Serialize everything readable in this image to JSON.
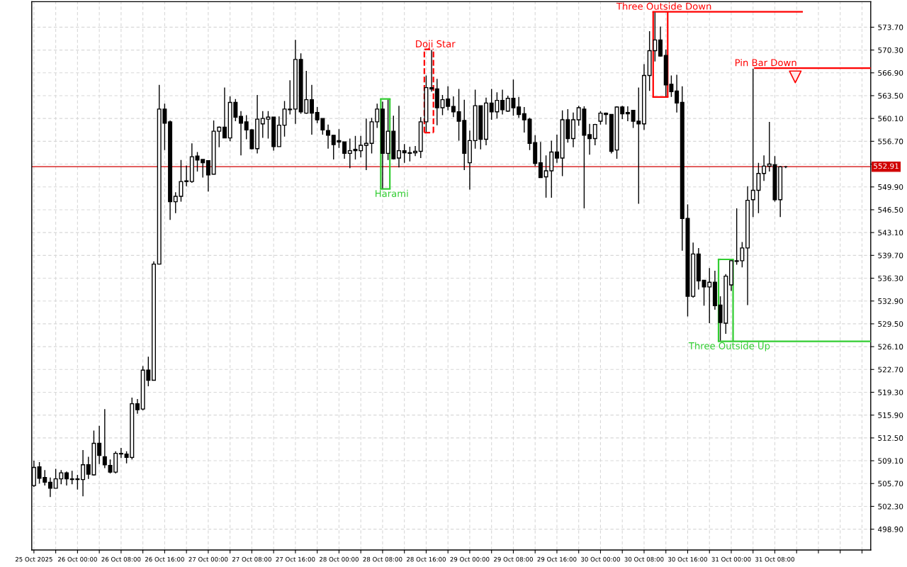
{
  "chart_data": {
    "type": "candlestick",
    "x": [
      "2025-10-25T16:00",
      "2025-10-25T17:00",
      "2025-10-25T18:00",
      "2025-10-25T19:00",
      "2025-10-25T20:00",
      "2025-10-25T21:00",
      "2025-10-25T22:00",
      "2025-10-25T23:00",
      "2025-10-26T00:00",
      "2025-10-26T01:00",
      "2025-10-26T02:00",
      "2025-10-26T03:00",
      "2025-10-26T04:00",
      "2025-10-26T05:00",
      "2025-10-26T06:00",
      "2025-10-26T07:00",
      "2025-10-26T08:00",
      "2025-10-26T09:00",
      "2025-10-26T10:00",
      "2025-10-26T11:00",
      "2025-10-26T12:00",
      "2025-10-26T13:00",
      "2025-10-26T14:00",
      "2025-10-26T15:00",
      "2025-10-26T16:00",
      "2025-10-26T17:00",
      "2025-10-26T18:00",
      "2025-10-26T19:00",
      "2025-10-26T20:00",
      "2025-10-26T21:00",
      "2025-10-26T22:00",
      "2025-10-26T23:00",
      "2025-10-27T00:00",
      "2025-10-27T01:00",
      "2025-10-27T02:00",
      "2025-10-27T03:00",
      "2025-10-27T04:00",
      "2025-10-27T05:00",
      "2025-10-27T06:00",
      "2025-10-27T07:00",
      "2025-10-27T08:00",
      "2025-10-27T09:00",
      "2025-10-27T10:00",
      "2025-10-27T11:00",
      "2025-10-27T12:00",
      "2025-10-27T13:00",
      "2025-10-27T14:00",
      "2025-10-27T15:00",
      "2025-10-27T16:00",
      "2025-10-27T17:00",
      "2025-10-27T18:00",
      "2025-10-27T19:00",
      "2025-10-27T20:00",
      "2025-10-27T21:00",
      "2025-10-27T22:00",
      "2025-10-27T23:00",
      "2025-10-28T00:00",
      "2025-10-28T01:00",
      "2025-10-28T02:00",
      "2025-10-28T03:00",
      "2025-10-28T04:00",
      "2025-10-28T05:00",
      "2025-10-28T06:00",
      "2025-10-28T07:00",
      "2025-10-28T08:00",
      "2025-10-28T09:00",
      "2025-10-28T10:00",
      "2025-10-28T11:00",
      "2025-10-28T12:00",
      "2025-10-28T13:00",
      "2025-10-28T14:00",
      "2025-10-28T15:00",
      "2025-10-28T16:00",
      "2025-10-28T17:00",
      "2025-10-28T18:00",
      "2025-10-28T19:00",
      "2025-10-28T20:00",
      "2025-10-28T21:00",
      "2025-10-28T22:00",
      "2025-10-28T23:00",
      "2025-10-29T00:00",
      "2025-10-29T01:00",
      "2025-10-29T02:00",
      "2025-10-29T03:00",
      "2025-10-29T04:00",
      "2025-10-29T05:00",
      "2025-10-29T06:00",
      "2025-10-29T07:00",
      "2025-10-29T08:00",
      "2025-10-29T09:00",
      "2025-10-29T10:00",
      "2025-10-29T11:00",
      "2025-10-29T12:00",
      "2025-10-29T13:00",
      "2025-10-29T14:00",
      "2025-10-29T15:00",
      "2025-10-29T16:00",
      "2025-10-29T17:00",
      "2025-10-29T18:00",
      "2025-10-29T19:00",
      "2025-10-29T20:00",
      "2025-10-29T21:00",
      "2025-10-29T22:00",
      "2025-10-29T23:00",
      "2025-10-30T00:00",
      "2025-10-30T01:00",
      "2025-10-30T02:00",
      "2025-10-30T03:00",
      "2025-10-30T04:00",
      "2025-10-30T05:00",
      "2025-10-30T06:00",
      "2025-10-30T07:00",
      "2025-10-30T08:00",
      "2025-10-30T09:00",
      "2025-10-30T10:00",
      "2025-10-30T11:00",
      "2025-10-30T12:00",
      "2025-10-30T13:00",
      "2025-10-30T14:00",
      "2025-10-30T15:00",
      "2025-10-30T16:00",
      "2025-10-30T17:00",
      "2025-10-30T18:00",
      "2025-10-30T19:00",
      "2025-10-30T20:00",
      "2025-10-30T21:00",
      "2025-10-30T22:00",
      "2025-10-30T23:00",
      "2025-10-31T00:00",
      "2025-10-31T01:00",
      "2025-10-31T02:00",
      "2025-10-31T03:00",
      "2025-10-31T04:00",
      "2025-10-31T05:00",
      "2025-10-31T06:00",
      "2025-10-31T07:00",
      "2025-10-31T08:00",
      "2025-10-31T09:00",
      "2025-10-31T10:00"
    ],
    "series": [
      {
        "color": "#000000",
        "ohlc": [
          [
            505.4,
            509.1,
            505.2,
            508.1
          ],
          [
            508.2,
            508.9,
            505.7,
            506.5
          ],
          [
            506.6,
            507.7,
            505.4,
            505.9
          ],
          [
            505.9,
            506.6,
            503.7,
            505.0
          ],
          [
            505.0,
            507.9,
            505.0,
            506.4
          ],
          [
            506.4,
            507.7,
            505.6,
            507.3
          ],
          [
            507.3,
            507.5,
            505.4,
            506.4
          ],
          [
            506.4,
            507.6,
            505.6,
            506.3
          ],
          [
            506.4,
            507.0,
            504.8,
            506.3
          ],
          [
            506.3,
            510.7,
            503.8,
            508.5
          ],
          [
            508.5,
            509.7,
            506.4,
            507.1
          ],
          [
            507.0,
            513.6,
            506.9,
            511.7
          ],
          [
            511.7,
            514.3,
            508.6,
            509.9
          ],
          [
            509.7,
            516.8,
            508.0,
            508.5
          ],
          [
            508.4,
            509.3,
            507.2,
            507.4
          ],
          [
            507.4,
            510.5,
            507.2,
            510.2
          ],
          [
            510.1,
            511.0,
            509.5,
            510.2
          ],
          [
            510.1,
            510.5,
            508.7,
            509.6
          ],
          [
            509.6,
            518.5,
            509.3,
            517.6
          ],
          [
            517.6,
            518.3,
            516.1,
            516.7
          ],
          [
            516.8,
            523.2,
            516.6,
            522.6
          ],
          [
            522.6,
            524.6,
            520.2,
            521.1
          ],
          [
            521.1,
            538.8,
            521.1,
            538.4
          ],
          [
            538.4,
            565.1,
            538.4,
            561.5
          ],
          [
            561.5,
            562.3,
            555.4,
            559.4
          ],
          [
            559.6,
            559.8,
            545.0,
            547.7
          ],
          [
            547.7,
            549.1,
            546.0,
            548.5
          ],
          [
            548.5,
            553.9,
            547.7,
            550.7
          ],
          [
            550.7,
            553.1,
            550.0,
            550.8
          ],
          [
            550.7,
            556.4,
            550.5,
            554.4
          ],
          [
            554.5,
            555.1,
            552.2,
            553.9
          ],
          [
            554.0,
            554.0,
            551.3,
            553.5
          ],
          [
            553.8,
            553.8,
            549.2,
            551.7
          ],
          [
            551.8,
            559.8,
            551.8,
            558.2
          ],
          [
            558.2,
            558.9,
            555.8,
            558.8
          ],
          [
            558.8,
            564.7,
            557.2,
            557.2
          ],
          [
            557.2,
            563.4,
            556.7,
            562.5
          ],
          [
            562.5,
            563.0,
            559.7,
            560.3
          ],
          [
            560.4,
            561.2,
            554.6,
            559.4
          ],
          [
            559.6,
            560.6,
            557.0,
            558.4
          ],
          [
            558.4,
            558.5,
            555.5,
            555.6
          ],
          [
            555.6,
            563.6,
            554.9,
            560.0
          ],
          [
            559.3,
            561.2,
            557.2,
            560.1
          ],
          [
            560.0,
            561.2,
            557.1,
            560.3
          ],
          [
            560.3,
            560.3,
            555.3,
            555.9
          ],
          [
            555.9,
            560.4,
            555.9,
            559.1
          ],
          [
            559.1,
            562.7,
            557.4,
            561.5
          ],
          [
            561.5,
            565.8,
            560.7,
            561.4
          ],
          [
            561.5,
            571.8,
            559.3,
            568.9
          ],
          [
            568.9,
            569.8,
            560.8,
            561.1
          ],
          [
            560.9,
            567.2,
            560.8,
            562.9
          ],
          [
            562.9,
            565.1,
            557.7,
            560.9
          ],
          [
            561.0,
            561.8,
            559.4,
            559.9
          ],
          [
            560.1,
            560.1,
            557.7,
            558.4
          ],
          [
            558.3,
            559.2,
            555.6,
            557.6
          ],
          [
            557.6,
            557.6,
            554.0,
            556.2
          ],
          [
            556.8,
            558.5,
            555.7,
            556.6
          ],
          [
            556.6,
            556.6,
            554.1,
            554.9
          ],
          [
            554.9,
            557.1,
            552.7,
            555.3
          ],
          [
            555.5,
            557.5,
            554.0,
            555.3
          ],
          [
            555.3,
            557.5,
            554.3,
            556.1
          ],
          [
            556.1,
            560.1,
            552.4,
            556.4
          ],
          [
            556.4,
            560.2,
            554.9,
            559.6
          ],
          [
            559.6,
            562.3,
            558.7,
            561.5
          ],
          [
            561.5,
            562.6,
            549.7,
            554.9
          ],
          [
            554.9,
            562.9,
            553.9,
            558.2
          ],
          [
            558.2,
            560.5,
            554.0,
            554.1
          ],
          [
            554.2,
            562.0,
            552.8,
            555.3
          ],
          [
            555.3,
            556.3,
            553.5,
            555.0
          ],
          [
            555.0,
            555.9,
            553.7,
            554.9
          ],
          [
            555.0,
            556.0,
            554.5,
            555.2
          ],
          [
            555.2,
            560.3,
            554.2,
            559.6
          ],
          [
            559.6,
            566.5,
            558.1,
            564.7
          ],
          [
            564.7,
            570.3,
            564.1,
            564.5
          ],
          [
            564.5,
            566.0,
            559.1,
            561.7
          ],
          [
            561.7,
            563.6,
            560.6,
            562.9
          ],
          [
            563.0,
            564.9,
            561.3,
            561.9
          ],
          [
            561.9,
            563.4,
            560.3,
            561.1
          ],
          [
            561.1,
            564.5,
            556.8,
            559.7
          ],
          [
            559.8,
            562.9,
            552.4,
            554.9
          ],
          [
            553.5,
            558.3,
            549.5,
            556.8
          ],
          [
            556.8,
            564.4,
            555.6,
            562.0
          ],
          [
            562.0,
            562.0,
            555.5,
            557.0
          ],
          [
            557.0,
            563.2,
            556.1,
            562.4
          ],
          [
            562.4,
            564.5,
            559.9,
            561.1
          ],
          [
            561.1,
            564.0,
            560.1,
            562.8
          ],
          [
            562.8,
            564.4,
            560.7,
            561.4
          ],
          [
            561.2,
            563.5,
            561.1,
            563.1
          ],
          [
            563.1,
            565.9,
            560.5,
            561.7
          ],
          [
            561.8,
            563.3,
            560.2,
            560.7
          ],
          [
            560.8,
            561.8,
            558.0,
            559.9
          ],
          [
            560.0,
            560.2,
            555.4,
            556.4
          ],
          [
            556.5,
            557.6,
            553.0,
            553.4
          ],
          [
            553.5,
            556.6,
            551.3,
            551.3
          ],
          [
            551.4,
            554.6,
            548.3,
            552.3
          ],
          [
            552.3,
            556.8,
            548.3,
            555.1
          ],
          [
            555.1,
            557.7,
            553.5,
            554.2
          ],
          [
            554.2,
            561.3,
            551.5,
            559.9
          ],
          [
            559.9,
            561.5,
            556.5,
            557.1
          ],
          [
            557.1,
            561.0,
            555.8,
            559.9
          ],
          [
            559.9,
            562.0,
            559.0,
            561.7
          ],
          [
            561.5,
            561.9,
            546.7,
            557.6
          ],
          [
            557.7,
            559.3,
            554.7,
            557.1
          ],
          [
            557.1,
            559.3,
            556.1,
            559.2
          ],
          [
            559.7,
            561.2,
            559.2,
            560.9
          ],
          [
            560.9,
            561.0,
            559.2,
            560.7
          ],
          [
            560.7,
            560.7,
            554.9,
            555.2
          ],
          [
            555.4,
            561.9,
            554.1,
            561.8
          ],
          [
            561.8,
            562.0,
            560.0,
            560.8
          ],
          [
            561.0,
            561.9,
            559.7,
            560.8
          ],
          [
            561.3,
            561.3,
            558.7,
            559.7
          ],
          [
            559.7,
            564.7,
            547.4,
            559.3
          ],
          [
            559.3,
            568.2,
            558.4,
            566.5
          ],
          [
            566.5,
            573.1,
            564.2,
            570.2
          ],
          [
            570.2,
            575.9,
            568.6,
            571.8
          ],
          [
            571.8,
            573.8,
            569.3,
            569.4
          ],
          [
            569.5,
            570.4,
            563.4,
            565.1
          ],
          [
            565.2,
            566.5,
            563.3,
            564.1
          ],
          [
            564.2,
            566.6,
            561.0,
            562.4
          ],
          [
            562.5,
            564.9,
            540.4,
            545.2
          ],
          [
            545.2,
            547.3,
            530.6,
            533.6
          ],
          [
            533.6,
            541.6,
            533.4,
            539.9
          ],
          [
            539.9,
            540.8,
            534.6,
            535.9
          ],
          [
            536.0,
            536.0,
            532.2,
            535.0
          ],
          [
            535.0,
            537.8,
            529.6,
            535.7
          ],
          [
            535.7,
            537.4,
            531.6,
            532.2
          ],
          [
            532.3,
            533.6,
            527.0,
            529.7
          ],
          [
            529.6,
            536.9,
            528.0,
            536.6
          ],
          [
            535.3,
            539.0,
            534.4,
            538.9
          ],
          [
            538.9,
            546.7,
            538.3,
            538.8
          ],
          [
            538.9,
            541.7,
            537.9,
            540.8
          ],
          [
            540.8,
            550.0,
            532.3,
            547.9
          ],
          [
            548.0,
            567.5,
            545.4,
            549.4
          ],
          [
            549.4,
            553.5,
            546.0,
            551.9
          ],
          [
            551.9,
            554.6,
            550.8,
            553.0
          ],
          [
            553.0,
            559.6,
            552.2,
            553.3
          ],
          [
            553.2,
            554.5,
            547.7,
            548.0
          ],
          [
            548.0,
            553.0,
            545.4,
            552.9
          ],
          [
            552.9,
            553.0,
            552.7,
            552.9
          ]
        ]
      },
      {
        "type": "line",
        "color": "#32cd32",
        "line_style": "solid",
        "x": [
          "2025-10-28T07:40",
          "2025-10-28T09:20"
        ],
        "values": [
          563.0,
          563.0
        ]
      },
      {
        "type": "line",
        "name": "Harami",
        "color": "#32cd32",
        "line_style": "solid",
        "x": [
          "2025-10-28T07:40",
          "2025-10-28T09:20"
        ],
        "values": [
          549.6,
          549.6
        ]
      },
      {
        "type": "line",
        "name": "Doji Star",
        "color": "#ff0000",
        "line_style": "dashed",
        "x": [
          "2025-10-28T15:40",
          "2025-10-28T17:20"
        ],
        "values": [
          570.4,
          570.4
        ]
      },
      {
        "type": "line",
        "color": "#ff0000",
        "line_style": "dashed",
        "x": [
          "2025-10-28T15:40",
          "2025-10-28T17:20"
        ],
        "values": [
          558.0,
          558.0
        ]
      },
      {
        "type": "line",
        "name": "Three Outside Down",
        "color": "#ff0000",
        "line_style": "solid",
        "x": [
          "2025-10-30T09:40",
          "2025-10-30T12:20",
          "2025-10-31T13:00"
        ],
        "values": [
          576.0,
          576.0,
          576.0
        ]
      },
      {
        "type": "line",
        "color": "#ff0000",
        "line_style": "solid",
        "x": [
          "2025-10-30T09:40",
          "2025-10-30T12:20"
        ],
        "values": [
          563.3,
          563.3
        ]
      },
      {
        "type": "line",
        "name": "Pin Bar Down",
        "color": "#ff0000",
        "line_style": "solid",
        "x": [
          "2025-10-31T04:20",
          "2025-11-01T01:36"
        ],
        "values": [
          567.6,
          567.6
        ]
      },
      {
        "type": "line",
        "color": "#32cd32",
        "line_style": "solid",
        "x": [
          "2025-10-30T21:40",
          "2025-10-31T00:20"
        ],
        "values": [
          539.1,
          539.1
        ]
      },
      {
        "type": "line",
        "name": "Three Outside Up",
        "color": "#32cd32",
        "line_style": "solid",
        "x": [
          "2025-10-30T21:40",
          "2025-10-31T00:20",
          "2025-11-01T01:36"
        ],
        "values": [
          526.9,
          526.9,
          526.9
        ]
      },
      {
        "type": "scatter",
        "color": "#ff0000",
        "marker": "triangle",
        "x": [
          "2025-10-31T11:45"
        ],
        "values": [
          566.3
        ]
      }
    ],
    "ref_lines": [
      {
        "axis": "y",
        "value": 552.91,
        "label": "552.91",
        "color": "#d00000"
      }
    ],
    "xlim": [
      "2025-10-25T15:36",
      "2025-11-01T01:36"
    ],
    "xticks": [
      {
        "value": "2025-10-25T16:00",
        "label": "25 Oct 2025"
      },
      {
        "value": "2025-10-25T20:00",
        "label": null
      },
      {
        "value": "2025-10-26T00:00",
        "label": "26 Oct 00:00"
      },
      {
        "value": "2025-10-26T04:00",
        "label": null
      },
      {
        "value": "2025-10-26T08:00",
        "label": "26 Oct 08:00"
      },
      {
        "value": "2025-10-26T12:00",
        "label": null
      },
      {
        "value": "2025-10-26T16:00",
        "label": "26 Oct 16:00"
      },
      {
        "value": "2025-10-26T20:00",
        "label": null
      },
      {
        "value": "2025-10-27T00:00",
        "label": "27 Oct 00:00"
      },
      {
        "value": "2025-10-27T04:00",
        "label": null
      },
      {
        "value": "2025-10-27T08:00",
        "label": "27 Oct 08:00"
      },
      {
        "value": "2025-10-27T12:00",
        "label": null
      },
      {
        "value": "2025-10-27T16:00",
        "label": "27 Oct 16:00"
      },
      {
        "value": "2025-10-27T20:00",
        "label": null
      },
      {
        "value": "2025-10-28T00:00",
        "label": "28 Oct 00:00"
      },
      {
        "value": "2025-10-28T04:00",
        "label": null
      },
      {
        "value": "2025-10-28T08:00",
        "label": "28 Oct 08:00"
      },
      {
        "value": "2025-10-28T12:00",
        "label": null
      },
      {
        "value": "2025-10-28T16:00",
        "label": "28 Oct 16:00"
      },
      {
        "value": "2025-10-28T20:00",
        "label": null
      },
      {
        "value": "2025-10-29T00:00",
        "label": "29 Oct 00:00"
      },
      {
        "value": "2025-10-29T04:00",
        "label": null
      },
      {
        "value": "2025-10-29T08:00",
        "label": "29 Oct 08:00"
      },
      {
        "value": "2025-10-29T12:00",
        "label": null
      },
      {
        "value": "2025-10-29T16:00",
        "label": "29 Oct 16:00"
      },
      {
        "value": "2025-10-29T20:00",
        "label": null
      },
      {
        "value": "2025-10-30T00:00",
        "label": "30 Oct 00:00"
      },
      {
        "value": "2025-10-30T04:00",
        "label": null
      },
      {
        "value": "2025-10-30T08:00",
        "label": "30 Oct 08:00"
      },
      {
        "value": "2025-10-30T12:00",
        "label": null
      },
      {
        "value": "2025-10-30T16:00",
        "label": "30 Oct 16:00"
      },
      {
        "value": "2025-10-30T20:00",
        "label": null
      },
      {
        "value": "2025-10-31T00:00",
        "label": "31 Oct 00:00"
      },
      {
        "value": "2025-10-31T04:00",
        "label": null
      },
      {
        "value": "2025-10-31T08:00",
        "label": "31 Oct 08:00"
      },
      {
        "value": "2025-10-31T12:00",
        "label": null
      },
      {
        "value": "2025-10-31T16:00",
        "label": null
      },
      {
        "value": "2025-10-31T20:00",
        "label": null
      },
      {
        "value": "2025-11-01T00:00",
        "label": null
      }
    ],
    "ylim": [
      495.8,
      577.5
    ],
    "yticks": [
      {
        "value": 573.7,
        "label": "573.70"
      },
      {
        "value": 570.3,
        "label": "570.30"
      },
      {
        "value": 566.9,
        "label": "566.90"
      },
      {
        "value": 563.5,
        "label": "563.50"
      },
      {
        "value": 560.1,
        "label": "560.10"
      },
      {
        "value": 556.7,
        "label": "556.70"
      },
      {
        "value": 553.3,
        "label": null
      },
      {
        "value": 549.9,
        "label": "549.90"
      },
      {
        "value": 546.5,
        "label": "546.50"
      },
      {
        "value": 543.1,
        "label": "543.10"
      },
      {
        "value": 539.7,
        "label": "539.70"
      },
      {
        "value": 536.3,
        "label": "536.30"
      },
      {
        "value": 532.9,
        "label": "532.90"
      },
      {
        "value": 529.5,
        "label": "529.50"
      },
      {
        "value": 526.1,
        "label": "526.10"
      },
      {
        "value": 522.7,
        "label": "522.70"
      },
      {
        "value": 519.3,
        "label": "519.30"
      },
      {
        "value": 515.9,
        "label": "515.90"
      },
      {
        "value": 512.5,
        "label": "512.50"
      },
      {
        "value": 509.1,
        "label": "509.10"
      },
      {
        "value": 505.7,
        "label": "505.70"
      },
      {
        "value": 502.3,
        "label": "502.30"
      },
      {
        "value": 498.9,
        "label": "498.90"
      }
    ],
    "grid": true
  }
}
